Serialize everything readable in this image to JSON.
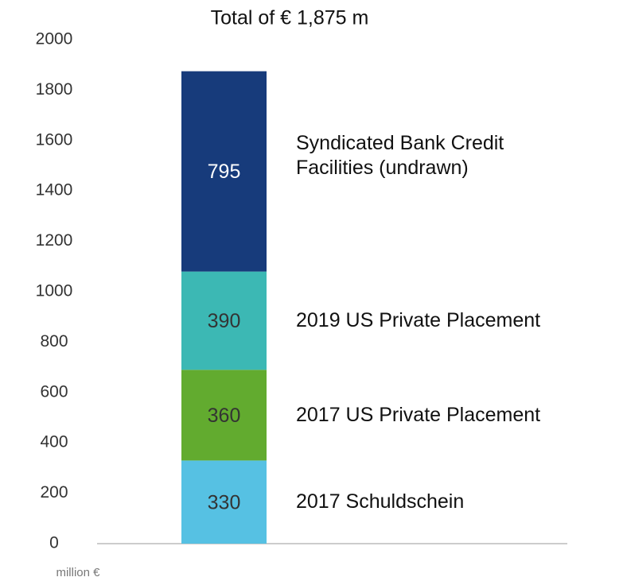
{
  "chart_data": {
    "type": "bar",
    "stacked": true,
    "title": "Total of € 1,875 m",
    "y_label": "million €",
    "categories": [
      null
    ],
    "series": [
      {
        "name": "2017 Schuldschein",
        "color": "#56c1e3",
        "values": [
          330
        ]
      },
      {
        "name": "2017 US Private Placement",
        "color": "#62ab2f",
        "values": [
          360
        ]
      },
      {
        "name": "2019 US Private Placement",
        "color": "#3cb8b4",
        "values": [
          390
        ]
      },
      {
        "name": "Syndicated Bank Credit Facilities (undrawn)",
        "color": "#173b7b",
        "values": [
          795
        ]
      }
    ],
    "ylim": [
      0,
      2000
    ],
    "yticks": [
      0,
      200,
      400,
      600,
      800,
      1000,
      1200,
      1400,
      1600,
      1800,
      2000
    ],
    "grid": false
  }
}
